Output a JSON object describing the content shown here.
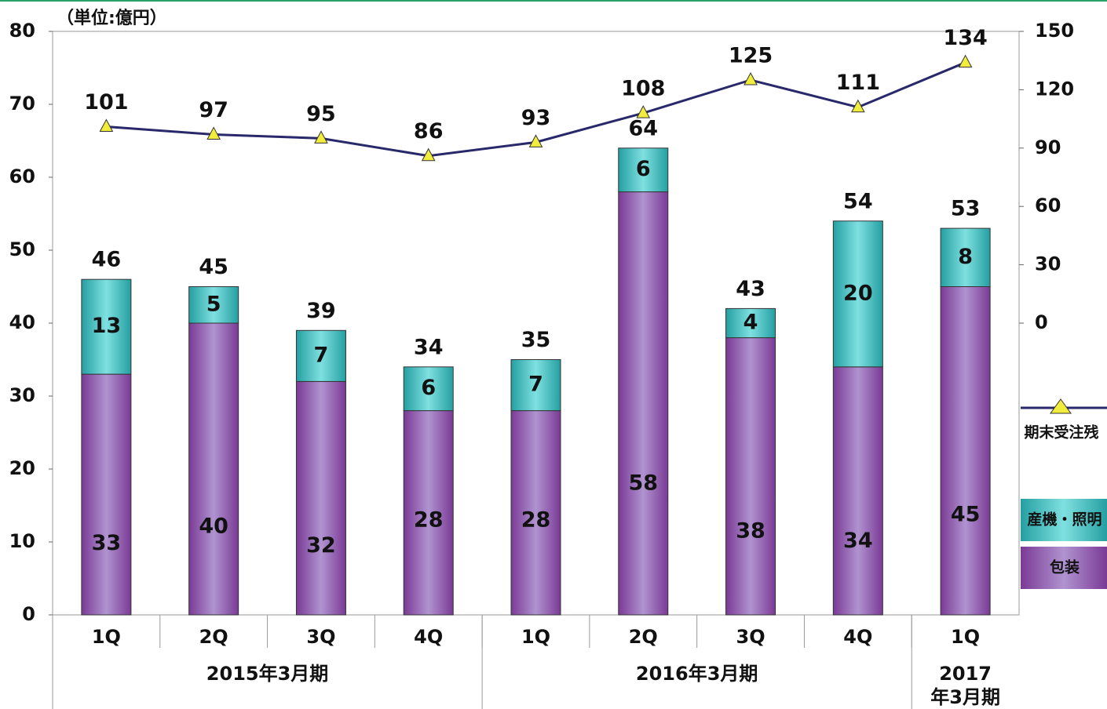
{
  "chart_data": {
    "type": "bar",
    "unit_label": "（単位:億円）",
    "categories": [
      "1Q",
      "2Q",
      "3Q",
      "4Q",
      "1Q",
      "2Q",
      "3Q",
      "4Q",
      "1Q"
    ],
    "groups": [
      {
        "label": "2015年3月期",
        "span": 4
      },
      {
        "label": "2016年3月期",
        "span": 4
      },
      {
        "label": "2017年3月期",
        "span": 1
      }
    ],
    "series": [
      {
        "name": "包装",
        "color": "#8d4fa6",
        "values": [
          33,
          40,
          32,
          28,
          28,
          58,
          38,
          34,
          45
        ]
      },
      {
        "name": "産機・照明",
        "color": "#38bcbd",
        "values": [
          13,
          5,
          7,
          6,
          7,
          6,
          4,
          20,
          8
        ]
      },
      {
        "name": "期末受注残",
        "type": "line",
        "axis": "y2",
        "color": "#28286a",
        "marker_color": "#f2ec3c",
        "values": [
          101,
          97,
          95,
          86,
          93,
          108,
          125,
          111,
          134
        ]
      }
    ],
    "totals": [
      46,
      45,
      39,
      34,
      35,
      64,
      43,
      54,
      53
    ],
    "ylim": [
      0,
      80
    ],
    "yticks": [
      0,
      10,
      20,
      30,
      40,
      50,
      60,
      70,
      80
    ],
    "y2lim": [
      -150,
      150
    ],
    "y2ticks": [
      0,
      30,
      60,
      90,
      120,
      150
    ],
    "legend": "right"
  }
}
